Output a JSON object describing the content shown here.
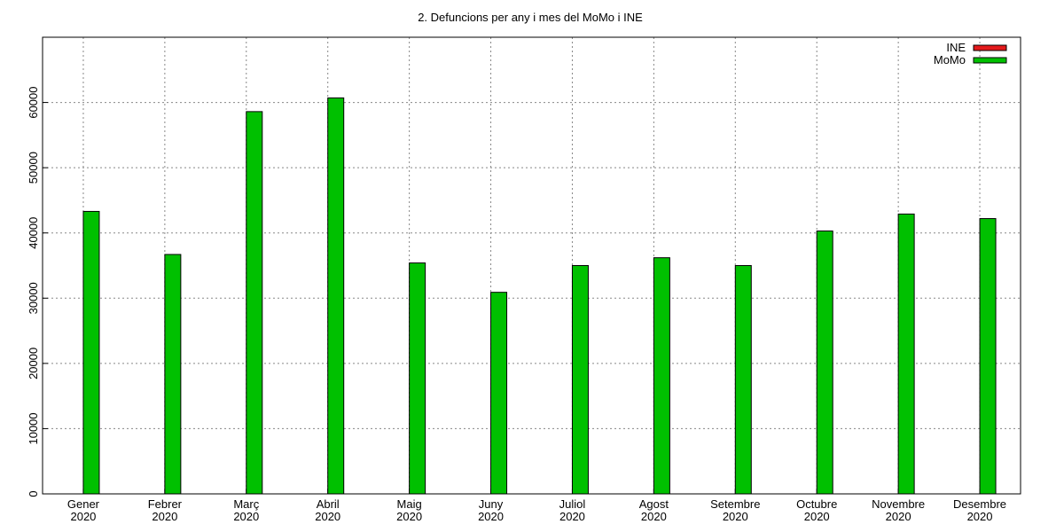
{
  "chart_data": {
    "type": "bar",
    "title": "2. Defuncions per any i mes del MoMo i INE",
    "categories": [
      "Gener\n2020",
      "Febrer\n2020",
      "Març\n2020",
      "Abril\n2020",
      "Maig\n2020",
      "Juny\n2020",
      "Juliol\n2020",
      "Agost\n2020",
      "Setembre\n2020",
      "Octubre\n2020",
      "Novembre\n2020",
      "Desembre\n2020"
    ],
    "series": [
      {
        "name": "INE",
        "color": "#e41a1c",
        "values": [
          null,
          null,
          null,
          null,
          null,
          null,
          null,
          null,
          null,
          null,
          null,
          null
        ]
      },
      {
        "name": "MoMo",
        "color": "#00c000",
        "values": [
          43300,
          36700,
          58600,
          60700,
          35400,
          30900,
          35000,
          36200,
          35000,
          40300,
          42900,
          42200
        ]
      }
    ],
    "ylim": [
      0,
      70000
    ],
    "yticks": [
      0,
      10000,
      20000,
      30000,
      40000,
      50000,
      60000
    ],
    "grid": true,
    "legend": "top-right"
  }
}
